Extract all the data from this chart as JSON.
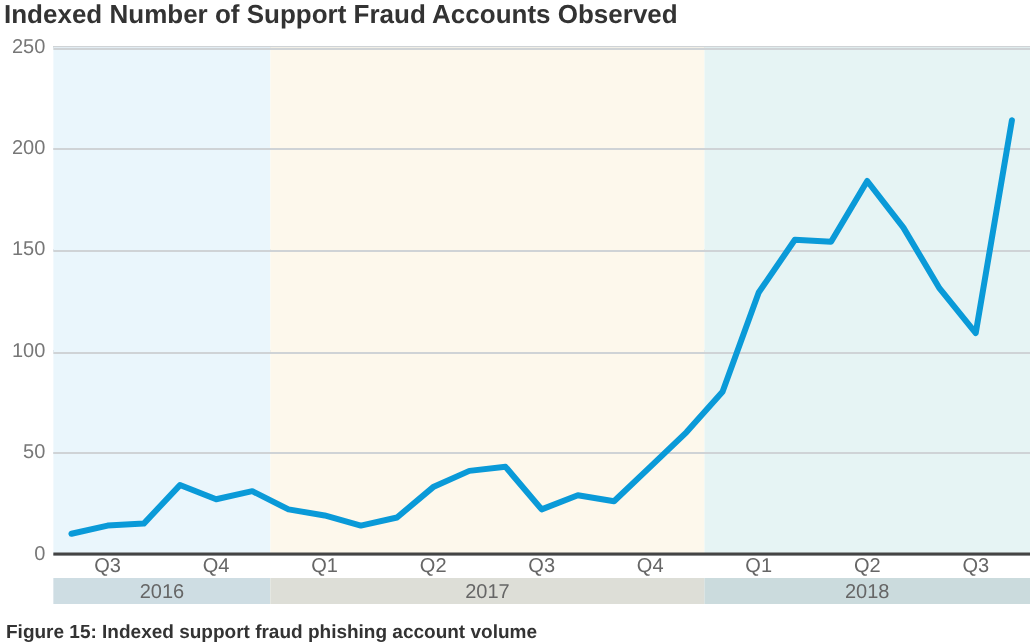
{
  "chart_data": {
    "type": "line",
    "title": "Indexed Number of Support Fraud Accounts Observed",
    "x": [
      "2016-07",
      "2016-08",
      "2016-09",
      "2016-10",
      "2016-11",
      "2016-12",
      "2017-01",
      "2017-02",
      "2017-03",
      "2017-04",
      "2017-05",
      "2017-06",
      "2017-07",
      "2017-08",
      "2017-09",
      "2017-10",
      "2017-11",
      "2017-12",
      "2018-01",
      "2018-02",
      "2018-03",
      "2018-04",
      "2018-05",
      "2018-06",
      "2018-07",
      "2018-08",
      "2018-09"
    ],
    "series": [
      {
        "color": "#0a9ad8",
        "values": [
          10,
          14,
          15,
          34,
          27,
          31,
          22,
          19,
          14,
          18,
          33,
          41,
          43,
          22,
          29,
          26,
          43,
          60,
          80,
          129,
          155,
          154,
          184,
          161,
          131,
          109,
          214
        ]
      }
    ],
    "xlim": [
      "2016-06-16",
      "2018-09-16"
    ],
    "xticks": [
      {
        "value": "2016-08",
        "label": "Q3"
      },
      {
        "value": "2016-11",
        "label": "Q4"
      },
      {
        "value": "2017-02",
        "label": "Q1"
      },
      {
        "value": "2017-05",
        "label": "Q2"
      },
      {
        "value": "2017-08",
        "label": "Q3"
      },
      {
        "value": "2017-11",
        "label": "Q4"
      },
      {
        "value": "2018-02",
        "label": "Q1"
      },
      {
        "value": "2018-05",
        "label": "Q2"
      },
      {
        "value": "2018-08",
        "label": "Q3"
      }
    ],
    "ylim": [
      0,
      250
    ],
    "yticks": [
      0,
      50,
      100,
      150,
      200,
      250
    ],
    "grid": "y",
    "legend": false,
    "marker": "none",
    "line_style": "solid",
    "bands": [
      {
        "axis": "x",
        "from": "2016-06-16",
        "to": "2016-12-16",
        "label": "2016",
        "color": "#eaf6fc"
      },
      {
        "axis": "x",
        "from": "2016-12-16",
        "to": "2017-12-16",
        "label": "2017",
        "color": "#fdf8ec"
      },
      {
        "axis": "x",
        "from": "2017-12-16",
        "to": "2018-09-16",
        "label": "2018",
        "color": "#e6f4f4"
      }
    ],
    "annotations": [
      "Figure 15: Indexed support fraud phishing account volume"
    ]
  }
}
